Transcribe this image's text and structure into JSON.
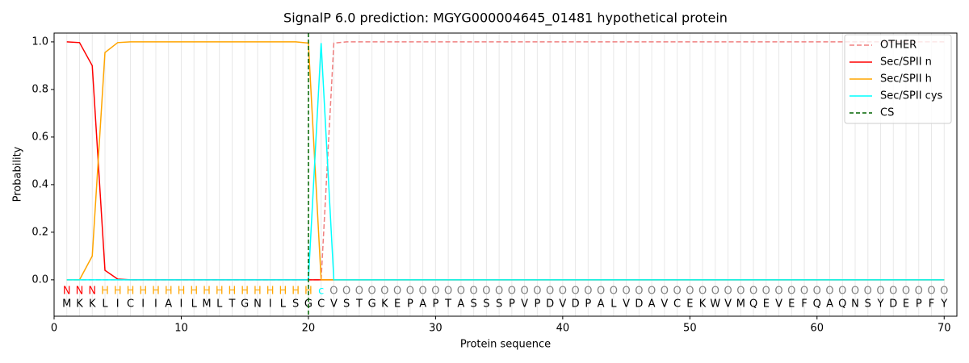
{
  "chart_data": {
    "type": "line",
    "title": "SignalP 6.0 prediction: MGYG000004645_01481 hypothetical protein",
    "xlabel": "Protein sequence",
    "ylabel": "Probability",
    "x": [
      1,
      2,
      3,
      4,
      5,
      6,
      7,
      8,
      9,
      10,
      11,
      12,
      13,
      14,
      15,
      16,
      17,
      18,
      19,
      20,
      21,
      22,
      23,
      24,
      25,
      26,
      27,
      28,
      29,
      30,
      31,
      32,
      33,
      34,
      35,
      36,
      37,
      38,
      39,
      40,
      41,
      42,
      43,
      44,
      45,
      46,
      47,
      48,
      49,
      50,
      51,
      52,
      53,
      54,
      55,
      56,
      57,
      58,
      59,
      60,
      61,
      62,
      63,
      64,
      65,
      66,
      67,
      68,
      69,
      70
    ],
    "sequence": [
      "M",
      "K",
      "K",
      "L",
      "I",
      "C",
      "I",
      "I",
      "A",
      "I",
      "L",
      "M",
      "L",
      "T",
      "G",
      "N",
      "I",
      "L",
      "S",
      "G",
      "C",
      "V",
      "S",
      "T",
      "G",
      "K",
      "E",
      "P",
      "A",
      "P",
      "T",
      "A",
      "S",
      "S",
      "S",
      "P",
      "V",
      "P",
      "D",
      "V",
      "D",
      "P",
      "A",
      "L",
      "V",
      "D",
      "A",
      "V",
      "C",
      "E",
      "K",
      "W",
      "V",
      "M",
      "Q",
      "E",
      "V",
      "E",
      "F",
      "Q",
      "A",
      "Q",
      "N",
      "S",
      "Y",
      "D",
      "E",
      "P",
      "F",
      "Y"
    ],
    "region_labels": [
      "N",
      "N",
      "N",
      "H",
      "H",
      "H",
      "H",
      "H",
      "H",
      "H",
      "H",
      "H",
      "H",
      "H",
      "H",
      "H",
      "H",
      "H",
      "H",
      "H",
      "c",
      "O",
      "O",
      "O",
      "O",
      "O",
      "O",
      "O",
      "O",
      "O",
      "O",
      "O",
      "O",
      "O",
      "O",
      "O",
      "O",
      "O",
      "O",
      "O",
      "O",
      "O",
      "O",
      "O",
      "O",
      "O",
      "O",
      "O",
      "O",
      "O",
      "O",
      "O",
      "O",
      "O",
      "O",
      "O",
      "O",
      "O",
      "O",
      "O",
      "O",
      "O",
      "O",
      "O",
      "O",
      "O",
      "O",
      "O",
      "O",
      "O"
    ],
    "region_colors": {
      "N": "#ff0000",
      "H": "#ffa500",
      "c": "#00ffff",
      "O": "#808080"
    },
    "series": [
      {
        "name": "OTHER",
        "color": "#f08080",
        "dash": true,
        "values": [
          0,
          0,
          0,
          0,
          0,
          0,
          0,
          0,
          0,
          0,
          0,
          0,
          0,
          0,
          0,
          0,
          0,
          0,
          0,
          0,
          0,
          0.995,
          1,
          1,
          1,
          1,
          1,
          1,
          1,
          1,
          1,
          1,
          1,
          1,
          1,
          1,
          1,
          1,
          1,
          1,
          1,
          1,
          1,
          1,
          1,
          1,
          1,
          1,
          1,
          1,
          1,
          1,
          1,
          1,
          1,
          1,
          1,
          1,
          1,
          1,
          1,
          1,
          1,
          1,
          1,
          1,
          1,
          1,
          1,
          1
        ]
      },
      {
        "name": "Sec/SPII n",
        "color": "#ff0000",
        "values": [
          1,
          0.997,
          0.9,
          0.04,
          0.003,
          0,
          0,
          0,
          0,
          0,
          0,
          0,
          0,
          0,
          0,
          0,
          0,
          0,
          0,
          0,
          0,
          0,
          0,
          0,
          0,
          0,
          0,
          0,
          0,
          0,
          0,
          0,
          0,
          0,
          0,
          0,
          0,
          0,
          0,
          0,
          0,
          0,
          0,
          0,
          0,
          0,
          0,
          0,
          0,
          0,
          0,
          0,
          0,
          0,
          0,
          0,
          0,
          0,
          0,
          0,
          0,
          0,
          0,
          0,
          0,
          0,
          0,
          0,
          0,
          0
        ]
      },
      {
        "name": "Sec/SPII h",
        "color": "#ffa500",
        "values": [
          0,
          0,
          0.1,
          0.955,
          0.997,
          1,
          1,
          1,
          1,
          1,
          1,
          1,
          1,
          1,
          1,
          1,
          1,
          1,
          1,
          0.995,
          0,
          0,
          0,
          0,
          0,
          0,
          0,
          0,
          0,
          0,
          0,
          0,
          0,
          0,
          0,
          0,
          0,
          0,
          0,
          0,
          0,
          0,
          0,
          0,
          0,
          0,
          0,
          0,
          0,
          0,
          0,
          0,
          0,
          0,
          0,
          0,
          0,
          0,
          0,
          0,
          0,
          0,
          0,
          0,
          0,
          0,
          0,
          0,
          0,
          0
        ]
      },
      {
        "name": "Sec/SPII cys",
        "color": "#00ffff",
        "values": [
          0,
          0,
          0,
          0,
          0,
          0,
          0,
          0,
          0,
          0,
          0,
          0,
          0,
          0,
          0,
          0,
          0,
          0,
          0,
          0,
          0.995,
          0,
          0,
          0,
          0,
          0,
          0,
          0,
          0,
          0,
          0,
          0,
          0,
          0,
          0,
          0,
          0,
          0,
          0,
          0,
          0,
          0,
          0,
          0,
          0,
          0,
          0,
          0,
          0,
          0,
          0,
          0,
          0,
          0,
          0,
          0,
          0,
          0,
          0,
          0,
          0,
          0,
          0,
          0,
          0,
          0,
          0,
          0,
          0,
          0
        ]
      }
    ],
    "cs": {
      "name": "CS",
      "x": 20,
      "color": "#006400"
    },
    "xlim": [
      0,
      71
    ],
    "ylim": [
      -0.153,
      1.037
    ],
    "xticks": [
      0,
      10,
      20,
      30,
      40,
      50,
      60,
      70
    ],
    "yticks": [
      {
        "value": 0,
        "label": "0.0"
      },
      0.2,
      0.4,
      0.6,
      0.8,
      {
        "value": 1,
        "label": "1.0"
      }
    ],
    "legend": "upper right"
  }
}
